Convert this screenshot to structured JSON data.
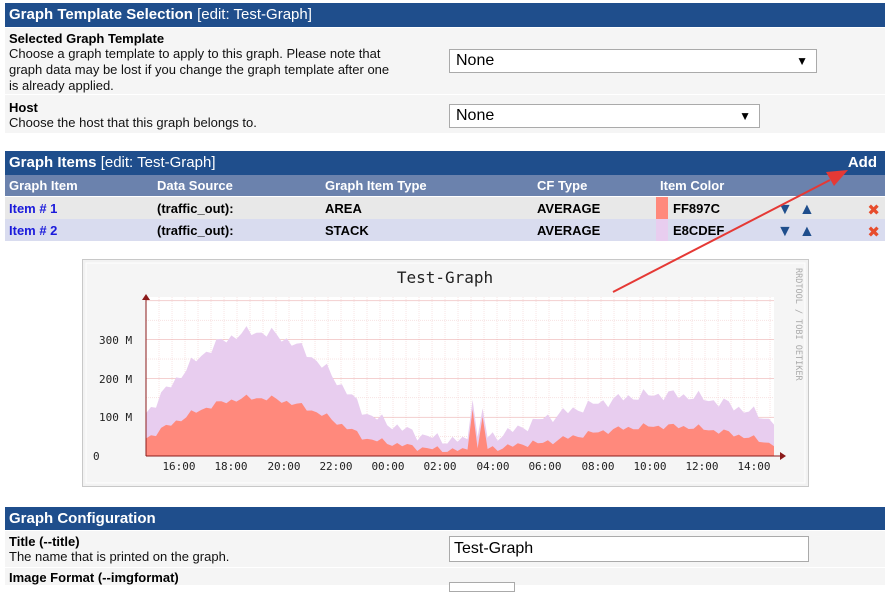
{
  "template_section": {
    "title": "Graph Template Selection",
    "edit": "[edit: Test-Graph]",
    "template_label": "Selected Graph Template",
    "template_desc_1": "Choose a graph template to apply to this graph. Please note that",
    "template_desc_2": "graph data may be lost if you change the graph template after one",
    "template_desc_3": "is already applied.",
    "template_value": "None",
    "host_label": "Host",
    "host_desc": "Choose the host that this graph belongs to.",
    "host_value": "None"
  },
  "items_section": {
    "title": "Graph Items",
    "edit": "[edit: Test-Graph]",
    "add_label": "Add",
    "columns": [
      "Graph Item",
      "Data Source",
      "Graph Item Type",
      "CF Type",
      "Item Color"
    ],
    "rows": [
      {
        "item": "Item # 1",
        "source": "(traffic_out):",
        "type": "AREA",
        "cf": "AVERAGE",
        "color_text": "FF897C",
        "color": "#FF897C"
      },
      {
        "item": "Item # 2",
        "source": "(traffic_out):",
        "type": "STACK",
        "cf": "AVERAGE",
        "color_text": "E8CDEF",
        "color": "#E8CDEF"
      }
    ]
  },
  "graph": {
    "title": "Test-Graph",
    "side_label": "RRDTOOL / TOBI OETIKER",
    "y_ticks": [
      "0",
      "100 M",
      "200 M",
      "300 M"
    ],
    "x_ticks": [
      "16:00",
      "18:00",
      "20:00",
      "22:00",
      "00:00",
      "02:00",
      "04:00",
      "06:00",
      "08:00",
      "10:00",
      "12:00",
      "14:00"
    ]
  },
  "config_section": {
    "title": "Graph Configuration",
    "title_label": "Title (--title)",
    "title_desc": "The name that is printed on the graph.",
    "title_value": "Test-Graph",
    "format_label": "Image Format (--imgformat)"
  },
  "colors": {
    "header": "#1f4e8c",
    "subheader": "#6b82ad",
    "area": "#FF897C",
    "stack": "#E8CDEF"
  }
}
